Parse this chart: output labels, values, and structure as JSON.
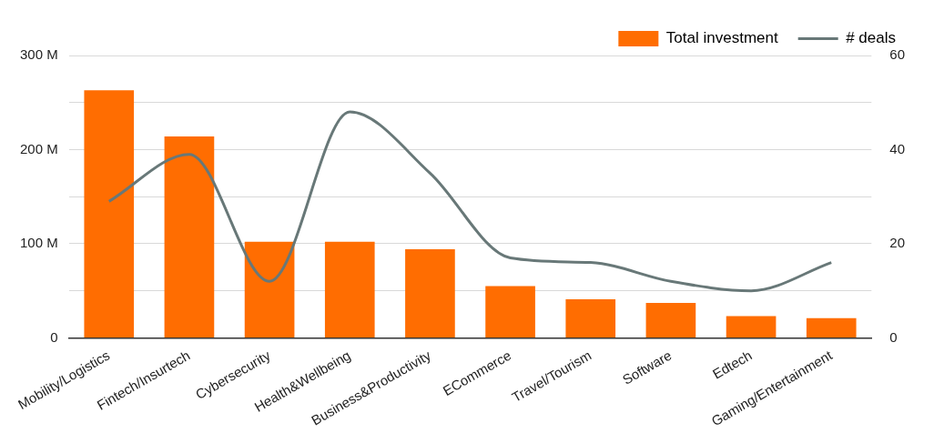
{
  "chart_data": {
    "type": "bar",
    "categories": [
      "Mobility/Logistics",
      "Fintech/Insurtech",
      "Cybersecurity",
      "Health&Wellbeing",
      "Business&Productivity",
      "ECommerce",
      "Travel/Tourism",
      "Software",
      "Edtech",
      "Gaming/Entertainment"
    ],
    "series": [
      {
        "name": "Total investment",
        "color": "#ff6d01",
        "values": [
          263,
          214,
          102,
          102,
          94,
          55,
          41,
          37,
          23,
          21
        ]
      },
      {
        "name": "# deals",
        "type": "line",
        "axis": "y2",
        "color": "#687878",
        "values": [
          29,
          39,
          12,
          48,
          35,
          17,
          16,
          12,
          10,
          16
        ]
      }
    ],
    "ylim": [
      0,
      300
    ],
    "yticks": [
      {
        "value": 0,
        "label": "0"
      },
      {
        "value": 50,
        "label": null
      },
      {
        "value": 100,
        "label": "100 M"
      },
      {
        "value": 150,
        "label": null
      },
      {
        "value": 200,
        "label": "200 M"
      },
      {
        "value": 250,
        "label": null
      },
      {
        "value": 300,
        "label": "300 M"
      }
    ],
    "y2lim": [
      0,
      60
    ],
    "y2ticks": [
      0,
      20,
      40,
      60
    ],
    "grid": "y",
    "legend": "top right",
    "marker": "none"
  }
}
